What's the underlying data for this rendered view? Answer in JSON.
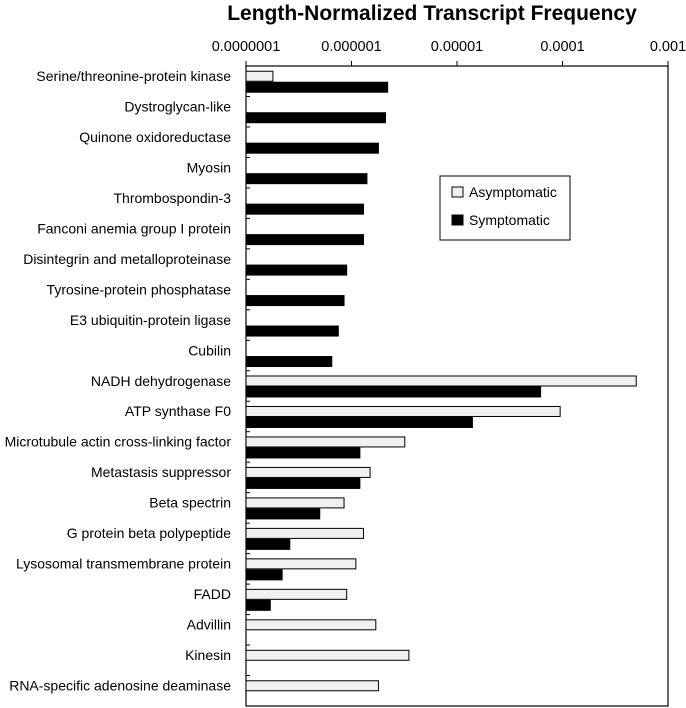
{
  "chart_data": {
    "type": "bar",
    "orientation": "horizontal",
    "title": "Length-Normalized Transcript Frequency",
    "x_scale": "log",
    "xlim": [
      1e-07,
      0.001
    ],
    "x_tick_labels": [
      "0.0000001",
      "0.000001",
      "0.00001",
      "0.0001",
      "0.001"
    ],
    "x_tick_values": [
      1e-07,
      1e-06,
      1e-05,
      0.0001,
      0.001
    ],
    "axis_position": "top",
    "legend_position": "right",
    "categories": [
      "Serine/threonine-protein kinase",
      "Dystroglycan-like",
      "Quinone oxidoreductase",
      "Myosin",
      "Thrombospondin-3",
      "Fanconi anemia group I protein",
      "Disintegrin and metalloproteinase",
      "Tyrosine-protein phosphatase",
      "E3 ubiquitin-protein ligase",
      "Cubilin",
      "NADH dehydrogenase",
      "ATP synthase F0",
      "Microtubule actin cross-linking factor",
      "Metastasis suppressor",
      "Beta spectrin",
      "G protein beta polypeptide",
      "Lysosomal transmembrane protein",
      "FADD",
      "Advillin",
      "Kinesin",
      "RNA-specific adenosine deaminase"
    ],
    "series": [
      {
        "name": "Asymptomatic",
        "color": "#f0f0f0",
        "values": [
          1.8e-07,
          null,
          null,
          null,
          null,
          null,
          null,
          null,
          null,
          null,
          0.0005,
          9.5e-05,
          3.2e-06,
          1.5e-06,
          8.5e-07,
          1.3e-06,
          1.1e-06,
          9e-07,
          1.7e-06,
          3.5e-06,
          1.8e-06
        ]
      },
      {
        "name": "Symptomatic",
        "color": "#000000",
        "values": [
          2.2e-06,
          2.1e-06,
          1.8e-06,
          1.4e-06,
          1.3e-06,
          1.3e-06,
          9e-07,
          8.5e-07,
          7.5e-07,
          6.5e-07,
          6.2e-05,
          1.4e-05,
          1.2e-06,
          1.2e-06,
          5e-07,
          2.6e-07,
          2.2e-07,
          1.7e-07,
          null,
          null,
          null
        ]
      }
    ]
  }
}
